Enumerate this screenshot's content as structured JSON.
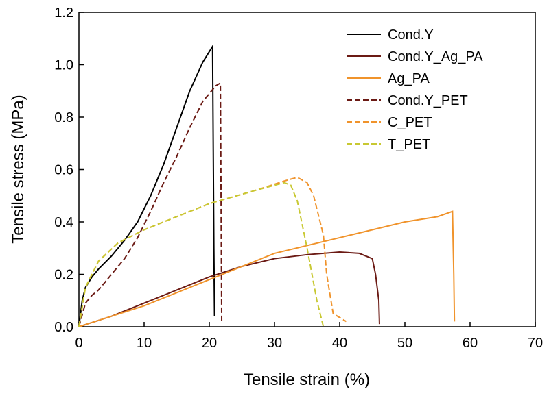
{
  "chart_data": {
    "type": "line",
    "x_label": "Tensile strain (%)",
    "y_label": "Tensile stress (MPa)",
    "xlim": [
      0,
      70
    ],
    "ylim": [
      0,
      1.2
    ],
    "xticks": [
      0,
      10,
      20,
      30,
      40,
      50,
      60,
      70
    ],
    "yticks": [
      {
        "value": 0,
        "label": "0.0"
      },
      0.2,
      0.4,
      0.6,
      0.8,
      {
        "value": 1,
        "label": "1.0"
      },
      1.2
    ],
    "legend": "upper right",
    "grid": false,
    "series": [
      {
        "name": "Cond.Y",
        "color": "#000000",
        "dashed": false,
        "x": [
          0,
          0.5,
          1,
          2,
          3,
          5,
          7,
          9,
          11,
          13,
          15,
          17,
          19,
          20.5,
          20.7,
          20.8
        ],
        "values": [
          0,
          0.1,
          0.15,
          0.19,
          0.22,
          0.27,
          0.33,
          0.4,
          0.5,
          0.62,
          0.76,
          0.9,
          1.01,
          1.07,
          0.3,
          0.04
        ]
      },
      {
        "name": "Cond.Y_Ag_PA",
        "color": "#6b1a14",
        "dashed": false,
        "x": [
          0,
          5,
          10,
          15,
          20,
          25,
          30,
          35,
          40,
          43,
          45,
          45.5,
          46,
          46.1
        ],
        "values": [
          0,
          0.04,
          0.09,
          0.14,
          0.19,
          0.23,
          0.26,
          0.275,
          0.285,
          0.28,
          0.26,
          0.2,
          0.1,
          0.01
        ]
      },
      {
        "name": "Ag_PA",
        "color": "#f0932b",
        "dashed": false,
        "x": [
          0,
          5,
          10,
          15,
          20,
          25,
          30,
          35,
          40,
          45,
          50,
          55,
          57.3,
          57.5,
          57.6
        ],
        "values": [
          0,
          0.04,
          0.08,
          0.13,
          0.18,
          0.23,
          0.28,
          0.31,
          0.34,
          0.37,
          0.4,
          0.42,
          0.44,
          0.2,
          0.02
        ]
      },
      {
        "name": "Cond.Y_PET",
        "color": "#6b1a14",
        "dashed": true,
        "x": [
          0,
          1,
          2,
          3,
          5,
          7,
          9,
          11,
          13,
          15,
          17,
          19,
          21,
          21.7,
          21.8,
          21.9
        ],
        "values": [
          0,
          0.09,
          0.12,
          0.14,
          0.2,
          0.26,
          0.34,
          0.44,
          0.55,
          0.65,
          0.76,
          0.86,
          0.92,
          0.93,
          0.5,
          0.02
        ]
      },
      {
        "name": "C_PET",
        "color": "#f0932b",
        "dashed": true,
        "x": [
          0,
          1,
          3,
          6,
          10,
          15,
          20,
          27,
          32,
          33.5,
          35,
          36,
          37.5,
          38,
          39,
          41
        ],
        "values": [
          0,
          0.15,
          0.25,
          0.32,
          0.37,
          0.42,
          0.47,
          0.52,
          0.56,
          0.57,
          0.55,
          0.5,
          0.35,
          0.2,
          0.05,
          0.02
        ]
      },
      {
        "name": "T_PET",
        "color": "#c8c832",
        "dashed": true,
        "x": [
          0,
          1,
          3,
          6,
          10,
          15,
          20,
          27,
          31.5,
          32.5,
          33.5,
          35,
          36.5,
          37.5
        ],
        "values": [
          0,
          0.15,
          0.25,
          0.32,
          0.37,
          0.42,
          0.47,
          0.52,
          0.55,
          0.54,
          0.48,
          0.3,
          0.1,
          0
        ]
      }
    ]
  }
}
